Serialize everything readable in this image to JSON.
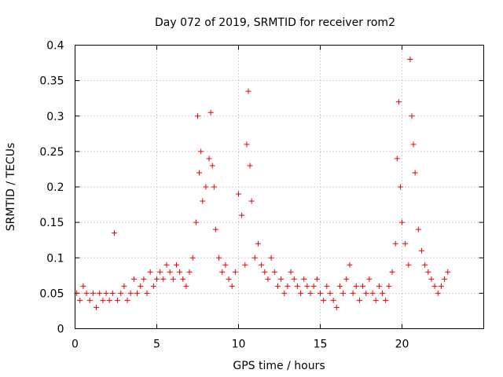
{
  "chart_data": {
    "type": "scatter",
    "title": "Day 072 of 2019, SRMTID for receiver rom2",
    "xlabel": "GPS time / hours",
    "ylabel": "SRMTID / TECUs",
    "xlim": [
      0,
      25
    ],
    "ylim": [
      0,
      0.4
    ],
    "xticks": [
      0,
      5,
      10,
      15,
      20
    ],
    "xtick_labels": [
      "0",
      "5",
      "10",
      "15",
      "20"
    ],
    "yticks": [
      0,
      0.05,
      0.1,
      0.15,
      0.2,
      0.25,
      0.3,
      0.35,
      0.4
    ],
    "ytick_labels": [
      "0",
      "0.05",
      "0.1",
      "0.15",
      "0.2",
      "0.25",
      "0.3",
      "0.35",
      "0.4"
    ],
    "grid": true,
    "marker": "+",
    "color": "#ee0000",
    "series": [
      {
        "name": "rom2",
        "x": [
          0.1,
          0.3,
          0.5,
          0.7,
          0.9,
          1.1,
          1.3,
          1.5,
          1.7,
          1.9,
          2.1,
          2.3,
          2.4,
          2.6,
          2.8,
          3.0,
          3.2,
          3.4,
          3.6,
          3.8,
          4.0,
          4.2,
          4.4,
          4.6,
          4.8,
          5.0,
          5.2,
          5.4,
          5.6,
          5.8,
          6.0,
          6.2,
          6.4,
          6.6,
          6.8,
          7.0,
          7.2,
          7.4,
          7.5,
          7.6,
          7.7,
          7.8,
          8.0,
          8.2,
          8.3,
          8.4,
          8.5,
          8.6,
          8.8,
          9.0,
          9.2,
          9.4,
          9.6,
          9.8,
          10.0,
          10.2,
          10.4,
          10.5,
          10.6,
          10.7,
          10.8,
          11.0,
          11.2,
          11.4,
          11.6,
          11.8,
          12.0,
          12.2,
          12.4,
          12.6,
          12.8,
          13.0,
          13.2,
          13.4,
          13.6,
          13.8,
          14.0,
          14.2,
          14.4,
          14.6,
          14.8,
          15.0,
          15.2,
          15.4,
          15.6,
          15.8,
          16.0,
          16.2,
          16.4,
          16.6,
          16.8,
          17.0,
          17.2,
          17.4,
          17.6,
          17.8,
          18.0,
          18.2,
          18.4,
          18.6,
          18.8,
          19.0,
          19.2,
          19.4,
          19.6,
          19.7,
          19.8,
          19.9,
          20.0,
          20.2,
          20.4,
          20.5,
          20.6,
          20.7,
          20.8,
          21.0,
          21.2,
          21.4,
          21.6,
          21.8,
          22.0,
          22.2,
          22.4,
          22.6,
          22.8
        ],
        "y": [
          0.05,
          0.04,
          0.06,
          0.05,
          0.04,
          0.05,
          0.03,
          0.05,
          0.04,
          0.05,
          0.04,
          0.05,
          0.135,
          0.04,
          0.05,
          0.06,
          0.04,
          0.05,
          0.07,
          0.05,
          0.06,
          0.07,
          0.05,
          0.08,
          0.06,
          0.07,
          0.08,
          0.07,
          0.09,
          0.08,
          0.07,
          0.09,
          0.08,
          0.07,
          0.06,
          0.08,
          0.1,
          0.15,
          0.3,
          0.22,
          0.25,
          0.18,
          0.2,
          0.24,
          0.305,
          0.23,
          0.2,
          0.14,
          0.1,
          0.08,
          0.09,
          0.07,
          0.06,
          0.08,
          0.19,
          0.16,
          0.09,
          0.26,
          0.335,
          0.23,
          0.18,
          0.1,
          0.12,
          0.09,
          0.08,
          0.07,
          0.1,
          0.08,
          0.06,
          0.07,
          0.05,
          0.06,
          0.08,
          0.07,
          0.06,
          0.05,
          0.07,
          0.06,
          0.05,
          0.06,
          0.07,
          0.05,
          0.04,
          0.06,
          0.05,
          0.04,
          0.03,
          0.06,
          0.05,
          0.07,
          0.09,
          0.05,
          0.06,
          0.04,
          0.06,
          0.05,
          0.07,
          0.05,
          0.04,
          0.06,
          0.05,
          0.04,
          0.06,
          0.08,
          0.12,
          0.24,
          0.32,
          0.2,
          0.15,
          0.12,
          0.09,
          0.38,
          0.3,
          0.26,
          0.22,
          0.14,
          0.11,
          0.09,
          0.08,
          0.07,
          0.06,
          0.05,
          0.06,
          0.07,
          0.08
        ]
      }
    ]
  }
}
